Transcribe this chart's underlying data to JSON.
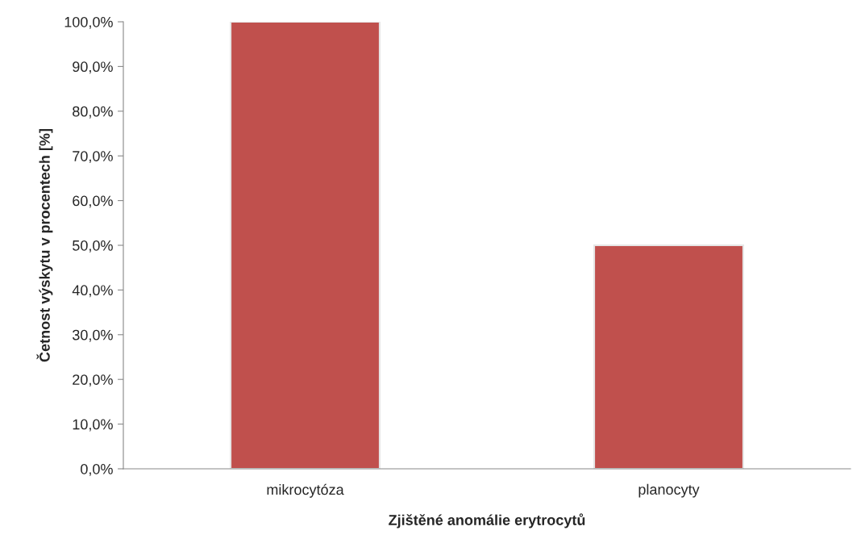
{
  "chart_data": {
    "type": "bar",
    "xlabel": "Zjištěné anomálie erytrocytů",
    "ylabel": "Četnost výskytu v procentech [%]",
    "categories": [
      "mikrocytóza",
      "planocyty"
    ],
    "values": [
      100,
      50
    ],
    "color": "#c0504d",
    "ylim": [
      0,
      100
    ],
    "yticks": [
      {
        "value": 0,
        "label": "0,0%"
      },
      {
        "value": 10,
        "label": "10,0%"
      },
      {
        "value": 20,
        "label": "20,0%"
      },
      {
        "value": 30,
        "label": "30,0%"
      },
      {
        "value": 40,
        "label": "40,0%"
      },
      {
        "value": 50,
        "label": "50,0%"
      },
      {
        "value": 60,
        "label": "60,0%"
      },
      {
        "value": 70,
        "label": "70,0%"
      },
      {
        "value": 80,
        "label": "80,0%"
      },
      {
        "value": 90,
        "label": "90,0%"
      },
      {
        "value": 100,
        "label": "100,0%"
      }
    ],
    "grid": false,
    "legend": false
  }
}
